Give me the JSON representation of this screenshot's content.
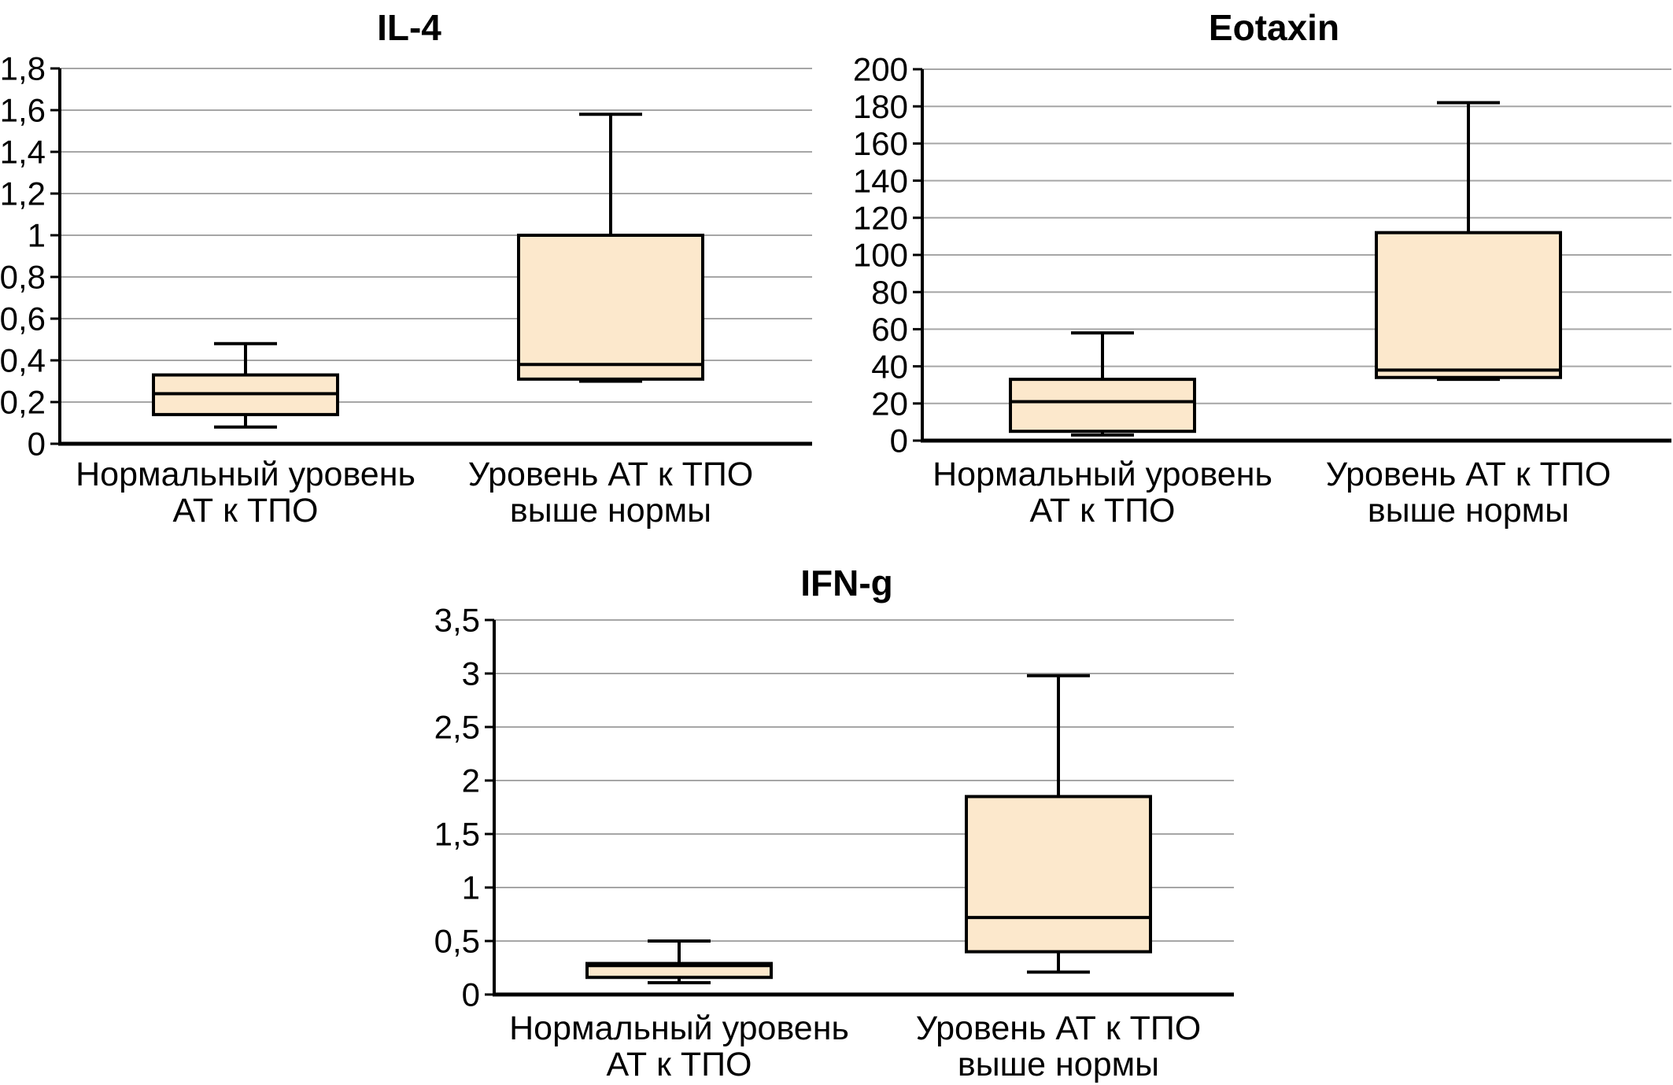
{
  "figure": {
    "background": "#FFFFFF"
  },
  "styles": {
    "box_fill": "#FCE8CC",
    "box_border": "#000000",
    "grid_color": "#A6A6A6",
    "axis_color": "#000000",
    "text_color": "#000000"
  },
  "chart_data": [
    {
      "type": "boxplot",
      "title": "IL-4",
      "categories": [
        [
          "Нормальный уровень",
          "АТ к ТПО"
        ],
        [
          "Уровень АТ к ТПО",
          "выше нормы"
        ]
      ],
      "ylim": [
        0,
        1.8
      ],
      "ytick_labels": [
        "0",
        "0,2",
        "0,4",
        "0,6",
        "0,8",
        "1",
        "1,2",
        "1,4",
        "1,6",
        "1,8"
      ],
      "grid": true,
      "legend": false,
      "series": [
        {
          "name": "Нормальный уровень АТ к ТПО",
          "whisker_low": 0.08,
          "q1": 0.14,
          "median": 0.24,
          "q3": 0.33,
          "whisker_high": 0.48
        },
        {
          "name": "Уровень АТ к ТПО выше нормы",
          "whisker_low": 0.3,
          "q1": 0.31,
          "median": 0.38,
          "q3": 1.0,
          "whisker_high": 1.58
        }
      ]
    },
    {
      "type": "boxplot",
      "title": "Eotaxin",
      "categories": [
        [
          "Нормальный уровень",
          "АТ к ТПО"
        ],
        [
          "Уровень АТ к ТПО",
          "выше нормы"
        ]
      ],
      "ylim": [
        0,
        200
      ],
      "ytick_labels": [
        "0",
        "20",
        "40",
        "60",
        "80",
        "100",
        "120",
        "140",
        "160",
        "180",
        "200"
      ],
      "grid": true,
      "legend": false,
      "series": [
        {
          "name": "Нормальный уровень АТ к ТПО",
          "whisker_low": 3,
          "q1": 5,
          "median": 21,
          "q3": 33,
          "whisker_high": 58
        },
        {
          "name": "Уровень АТ к ТПО выше нормы",
          "whisker_low": 33,
          "q1": 34,
          "median": 38,
          "q3": 112,
          "whisker_high": 182
        }
      ]
    },
    {
      "type": "boxplot",
      "title": "IFN-g",
      "categories": [
        [
          "Нормальный уровень",
          "АТ к ТПО"
        ],
        [
          "Уровень АТ к ТПО",
          "выше нормы"
        ]
      ],
      "ylim": [
        0,
        3.5
      ],
      "ytick_labels": [
        "0",
        "0,5",
        "1",
        "1,5",
        "2",
        "2,5",
        "3",
        "3,5"
      ],
      "grid": true,
      "legend": false,
      "series": [
        {
          "name": "Нормальный уровень АТ к ТПО",
          "whisker_low": 0.11,
          "q1": 0.16,
          "median": 0.27,
          "q3": 0.29,
          "whisker_high": 0.5
        },
        {
          "name": "Уровень АТ к ТПО выше нормы",
          "whisker_low": 0.21,
          "q1": 0.4,
          "median": 0.72,
          "q3": 1.85,
          "whisker_high": 2.98
        }
      ]
    }
  ]
}
